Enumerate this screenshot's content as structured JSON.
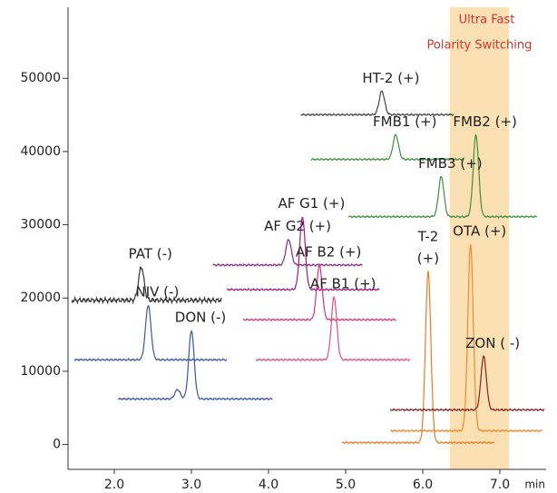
{
  "chart_data": {
    "type": "chromatogram",
    "x_label": "min",
    "xlim": [
      1.4,
      7.6
    ],
    "ylim": [
      -3400,
      59700
    ],
    "xticks": [
      {
        "value": 2,
        "label": "2.0"
      },
      {
        "value": 3,
        "label": "3.0"
      },
      {
        "value": 4,
        "label": "4.0"
      },
      {
        "value": 5,
        "label": "5.0"
      },
      {
        "value": 6,
        "label": "6.0"
      },
      {
        "value": 7,
        "label": "7.0"
      }
    ],
    "yticks": [
      0,
      10000,
      20000,
      30000,
      40000,
      50000
    ],
    "highlight": {
      "xlim": [
        6.35,
        7.12
      ],
      "color": "#fbe0b4",
      "label": [
        "Ultra Fast",
        "Polarity Switching"
      ]
    },
    "series": [
      {
        "color": "#333333",
        "baseline": 19700,
        "x_range": [
          1.45,
          3.4
        ],
        "peaks": [
          {
            "label": [
              "PAT   (-)"
            ],
            "x": 2.35,
            "top": 24250
          }
        ]
      },
      {
        "color": "#3a55b0",
        "baseline": 11570,
        "x_range": [
          1.48,
          3.46
        ],
        "peaks": [
          {
            "label": [
              "NIV  (-)"
            ],
            "x": 2.44,
            "top": 19030
          }
        ]
      },
      {
        "color": "#3a55b0",
        "baseline": 6220,
        "x_range": [
          2.05,
          4.05
        ],
        "peaks": [
          {
            "x": 2.82,
            "top": 7500
          },
          {
            "label": [
              "DON    (-)"
            ],
            "x": 3.0,
            "top": 15550
          }
        ]
      },
      {
        "color": "#8a2a7a",
        "baseline": 24500,
        "x_range": [
          3.28,
          5.22
        ],
        "peaks": [
          {
            "label": [
              "AF G2 (+)"
            ],
            "x": 4.26,
            "top": 28000
          }
        ]
      },
      {
        "color": "#9a1f7a",
        "baseline": 21150,
        "x_range": [
          3.46,
          5.44
        ],
        "peaks": [
          {
            "label": [
              "AF G1 (+)"
            ],
            "x": 4.44,
            "top": 31100
          }
        ]
      },
      {
        "color": "#d6367c",
        "baseline": 17040,
        "x_range": [
          3.67,
          5.66
        ],
        "peaks": [
          {
            "label": [
              "AF B2 (+)"
            ],
            "x": 4.66,
            "top": 24500
          }
        ]
      },
      {
        "color": "#e0507f",
        "baseline": 11570,
        "x_range": [
          3.84,
          5.84
        ],
        "peaks": [
          {
            "label": [
              "AF B1 (+)"
            ],
            "x": 4.85,
            "top": 20150
          }
        ]
      },
      {
        "color": "#444444",
        "baseline": 45030,
        "x_range": [
          4.42,
          6.4
        ],
        "peaks": [
          {
            "label": [
              "HT-2 (+)"
            ],
            "x": 5.47,
            "top": 48260
          }
        ]
      },
      {
        "color": "#3f8f3f",
        "baseline": 38930,
        "x_range": [
          4.55,
          6.54
        ],
        "peaks": [
          {
            "label": [
              "FMB1 (+)"
            ],
            "x": 5.65,
            "top": 42290
          }
        ]
      },
      {
        "color": "#3f8f3f",
        "baseline": 31100,
        "x_range": [
          5.04,
          7.48
        ],
        "peaks": [
          {
            "label": [
              "FMB3 (+)"
            ],
            "x": 6.24,
            "top": 36570
          },
          {
            "label": [
              "FMB2 (+)"
            ],
            "x": 6.69,
            "top": 42290
          }
        ]
      },
      {
        "color": "#f07a2a",
        "baseline": 250,
        "x_range": [
          4.95,
          6.93
        ],
        "peaks": [
          {
            "label": [
              "T-2",
              "(+)"
            ],
            "x": 6.07,
            "top": 23630
          }
        ]
      },
      {
        "color": "#f08a30",
        "baseline": 1870,
        "x_range": [
          5.58,
          7.55
        ],
        "peaks": [
          {
            "label": [
              "OTA (+)"
            ],
            "x": 6.62,
            "top": 27360
          }
        ]
      },
      {
        "color": "#8a1f1f",
        "baseline": 4730,
        "x_range": [
          5.58,
          7.58
        ],
        "peaks": [
          {
            "label": [
              "ZON ( -)"
            ],
            "x": 6.79,
            "top": 12060
          }
        ]
      }
    ]
  }
}
